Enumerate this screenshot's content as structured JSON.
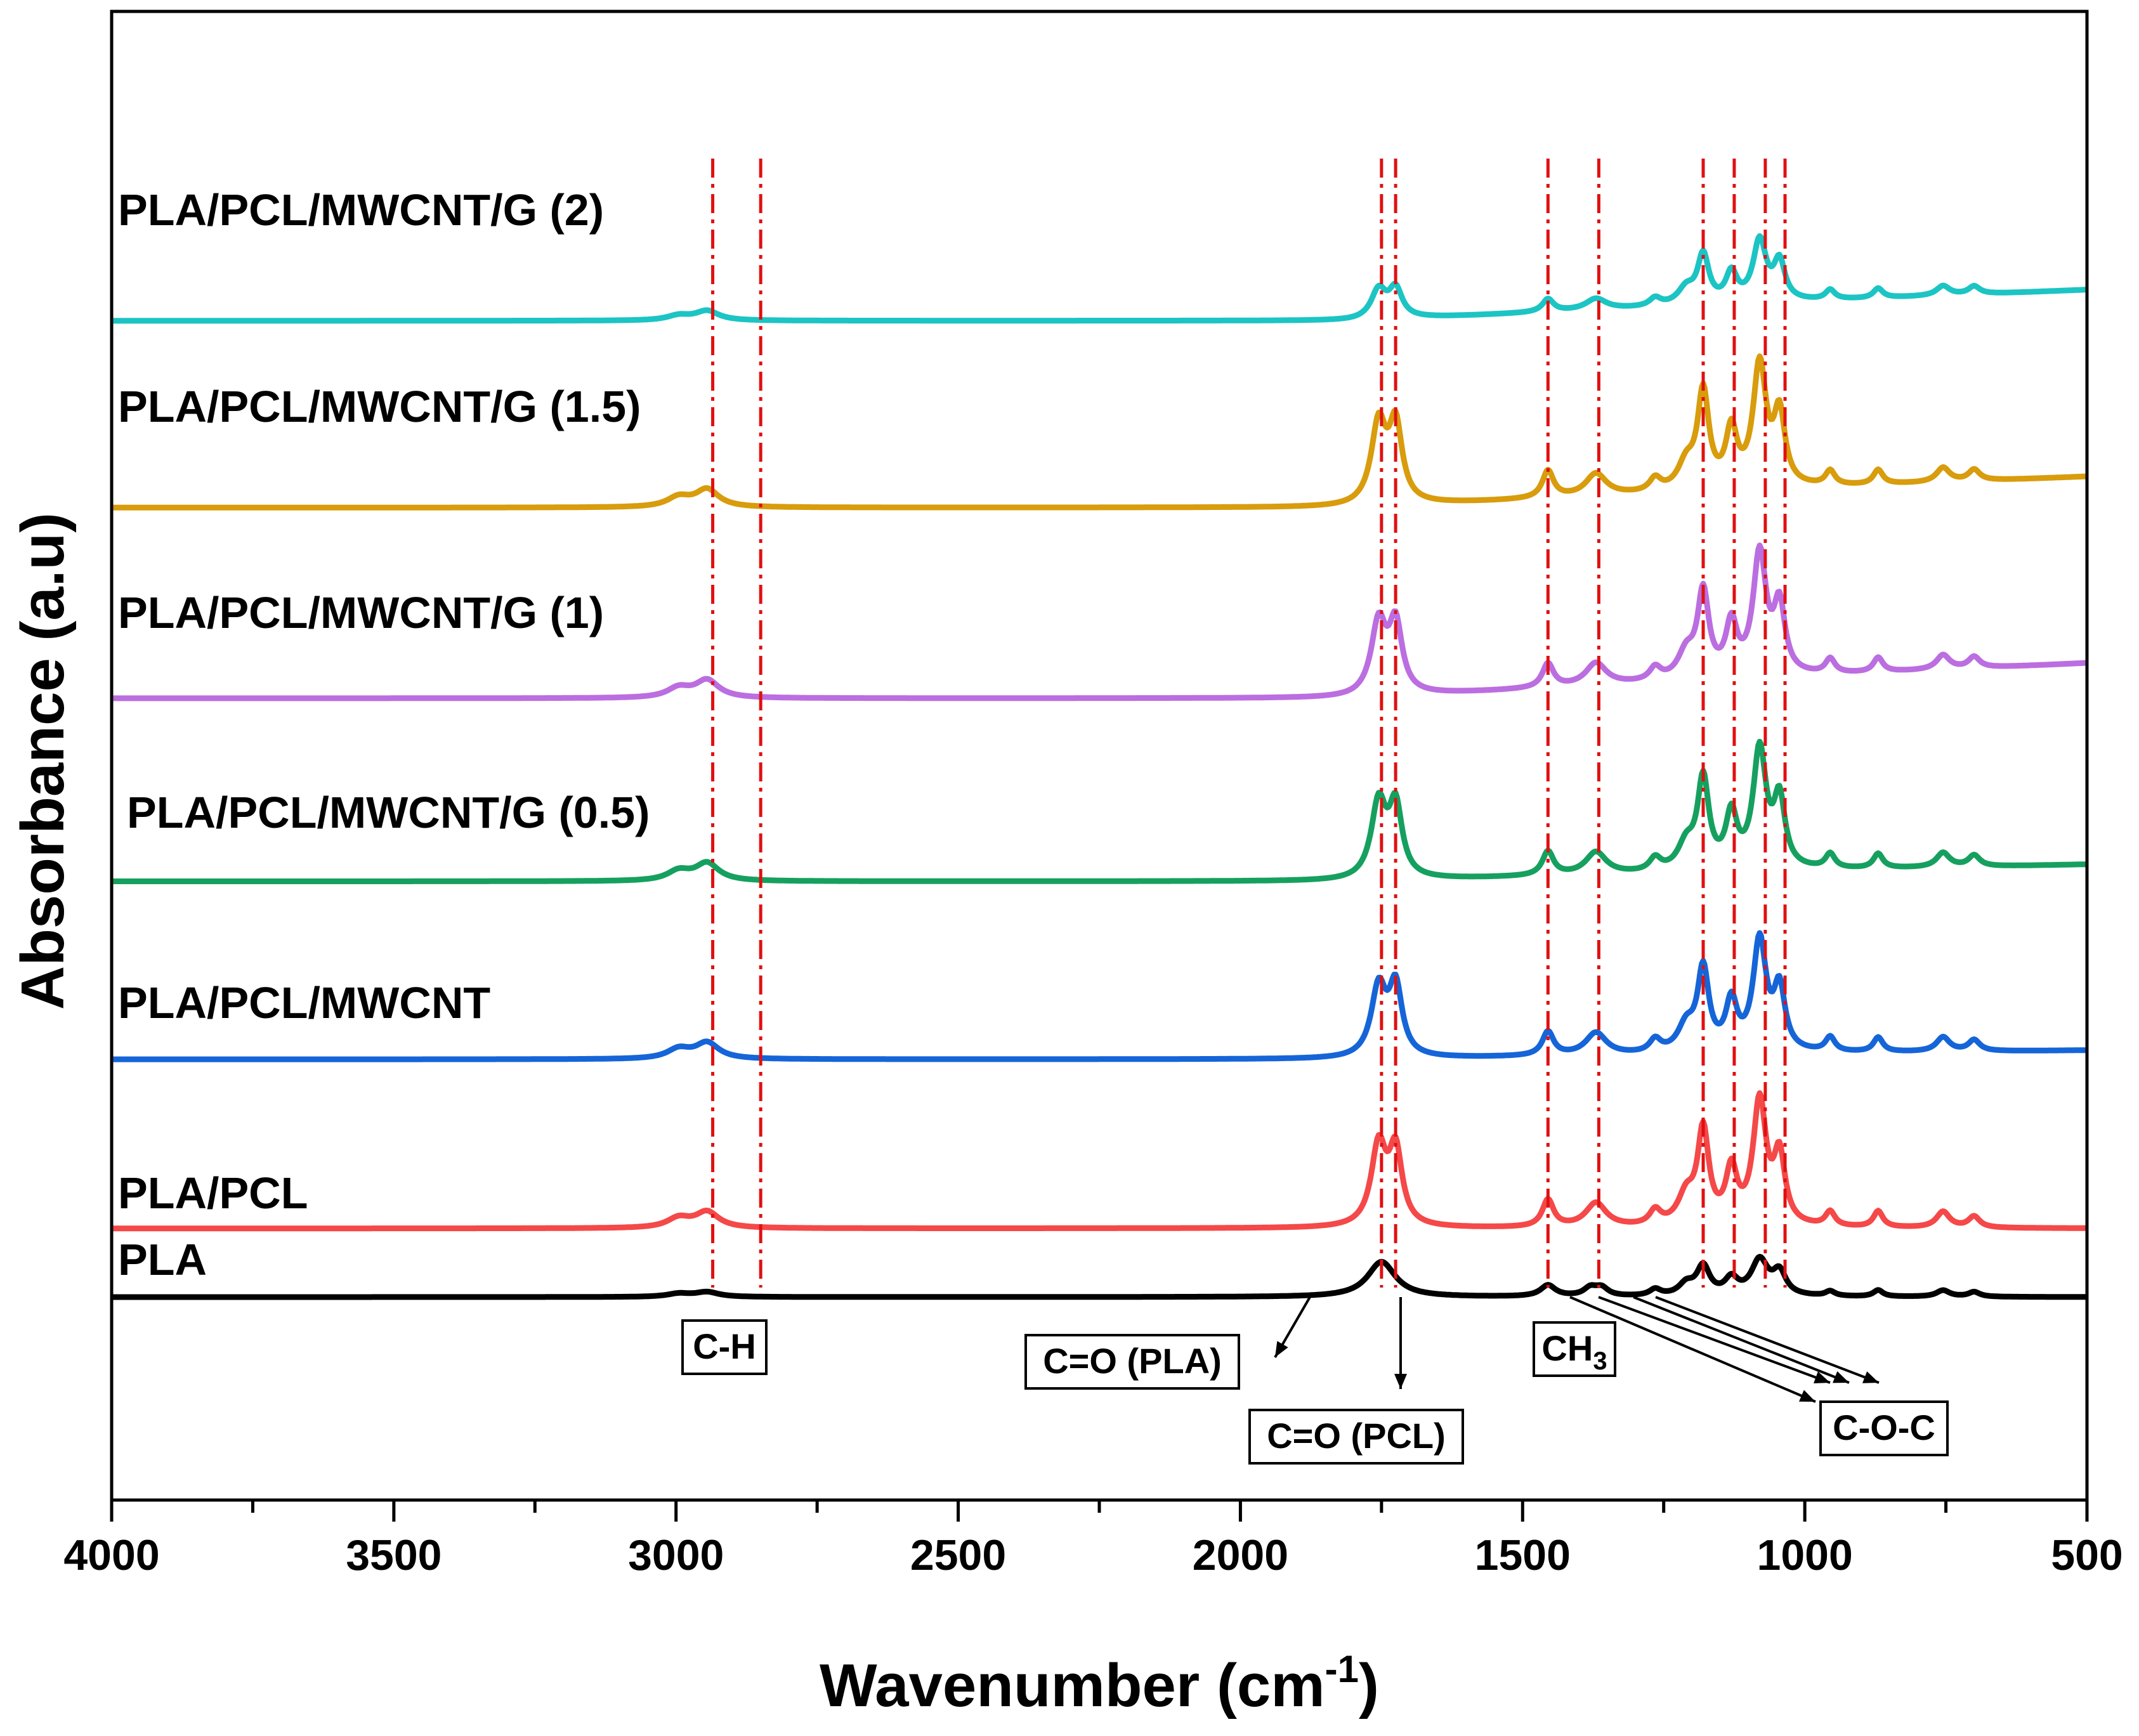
{
  "chart_data": {
    "type": "line",
    "xlabel": "Wavenumber (cm",
    "xlabel_sup": "-1",
    "xlabel_end": ")",
    "ylabel": "Absorbance (a.u)",
    "xlim": [
      4000,
      500
    ],
    "x_reversed": true,
    "x_ticks": [
      "4000",
      "3500",
      "3000",
      "2500",
      "2000",
      "1500",
      "1000",
      "500"
    ],
    "y_ticks_shown": false,
    "grid": false,
    "series_stacked": true,
    "series": [
      {
        "name": "PLA",
        "color": "#000000",
        "offset": 0,
        "scale": 1,
        "peaks": [
          [
            2995,
            2,
            25
          ],
          [
            2945,
            3,
            25
          ],
          [
            1750,
            22,
            30
          ],
          [
            1455,
            7,
            16
          ],
          [
            1380,
            5,
            14
          ],
          [
            1360,
            5,
            14
          ],
          [
            1265,
            4,
            12
          ],
          [
            1210,
            7,
            16
          ],
          [
            1180,
            18,
            14
          ],
          [
            1130,
            10,
            14
          ],
          [
            1080,
            22,
            18
          ],
          [
            1045,
            14,
            14
          ],
          [
            955,
            3,
            10
          ],
          [
            870,
            4,
            10
          ],
          [
            755,
            4,
            14
          ],
          [
            700,
            3,
            12
          ]
        ]
      },
      {
        "name": "PLA/PCL",
        "color": "#f54848",
        "offset": 54,
        "scale": 1,
        "peaks": [
          [
            2995,
            6,
            25
          ],
          [
            2945,
            10,
            25
          ],
          [
            1755,
            50,
            16
          ],
          [
            1725,
            46,
            14
          ],
          [
            1455,
            17,
            12
          ],
          [
            1370,
            15,
            22
          ],
          [
            1265,
            9,
            12
          ],
          [
            1210,
            18,
            18
          ],
          [
            1180,
            58,
            12
          ],
          [
            1130,
            33,
            12
          ],
          [
            1080,
            77,
            14
          ],
          [
            1045,
            42,
            12
          ],
          [
            955,
            9,
            10
          ],
          [
            870,
            10,
            10
          ],
          [
            755,
            10,
            14
          ],
          [
            700,
            7,
            12
          ]
        ],
        "baseline_slope": 0.0
      },
      {
        "name": "PLA/PCL/MWCNT",
        "color": "#1565d8",
        "offset": 187,
        "scale": 1,
        "peaks": [
          [
            2995,
            6,
            25
          ],
          [
            2945,
            10,
            25
          ],
          [
            1755,
            43,
            16
          ],
          [
            1725,
            43,
            14
          ],
          [
            1455,
            15,
            12
          ],
          [
            1370,
            14,
            22
          ],
          [
            1265,
            8,
            12
          ],
          [
            1210,
            16,
            18
          ],
          [
            1180,
            51,
            12
          ],
          [
            1130,
            30,
            12
          ],
          [
            1080,
            69,
            14
          ],
          [
            1045,
            38,
            12
          ],
          [
            955,
            9,
            10
          ],
          [
            870,
            9,
            10
          ],
          [
            755,
            9,
            14
          ],
          [
            700,
            7,
            12
          ]
        ],
        "baseline_slope": 0.0043
      },
      {
        "name": "PLA/PCL/MWCNT/G (0.5)",
        "color": "#16a05f",
        "offset": 327,
        "scale": 1,
        "peaks": [
          [
            2995,
            6,
            25
          ],
          [
            2945,
            11,
            25
          ],
          [
            1755,
            47,
            16
          ],
          [
            1725,
            44,
            14
          ],
          [
            1455,
            15,
            12
          ],
          [
            1370,
            14,
            22
          ],
          [
            1265,
            8,
            12
          ],
          [
            1210,
            16,
            18
          ],
          [
            1180,
            56,
            12
          ],
          [
            1130,
            33,
            12
          ],
          [
            1080,
            74,
            14
          ],
          [
            1045,
            42,
            12
          ],
          [
            955,
            9,
            10
          ],
          [
            870,
            9,
            10
          ],
          [
            755,
            9,
            14
          ],
          [
            700,
            7,
            12
          ]
        ],
        "baseline_slope": 0.0081
      },
      {
        "name": "PLA/PCL/MWCNT/G (1)",
        "color": "#bb6ee0",
        "offset": 471,
        "scale": 1,
        "peaks": [
          [
            2995,
            6,
            25
          ],
          [
            2945,
            11,
            25
          ],
          [
            1755,
            45,
            16
          ],
          [
            1725,
            43,
            14
          ],
          [
            1455,
            15,
            12
          ],
          [
            1370,
            14,
            22
          ],
          [
            1265,
            8,
            12
          ],
          [
            1210,
            16,
            18
          ],
          [
            1180,
            53,
            12
          ],
          [
            1130,
            32,
            12
          ],
          [
            1080,
            76,
            14
          ],
          [
            1045,
            42,
            12
          ],
          [
            955,
            9,
            10
          ],
          [
            870,
            9,
            10
          ],
          [
            755,
            9,
            14
          ],
          [
            700,
            7,
            12
          ]
        ],
        "baseline_slope": 0.0169
      },
      {
        "name": "PLA/PCL/MWCNT/G (1.5)",
        "color": "#d89c0c",
        "offset": 621,
        "scale": 1,
        "peaks": [
          [
            2995,
            6,
            25
          ],
          [
            2945,
            11,
            25
          ],
          [
            1755,
            50,
            16
          ],
          [
            1725,
            48,
            14
          ],
          [
            1455,
            17,
            12
          ],
          [
            1370,
            14,
            22
          ],
          [
            1265,
            8,
            12
          ],
          [
            1210,
            16,
            18
          ],
          [
            1180,
            60,
            12
          ],
          [
            1130,
            35,
            12
          ],
          [
            1080,
            76,
            14
          ],
          [
            1045,
            44,
            12
          ],
          [
            955,
            9,
            10
          ],
          [
            870,
            9,
            10
          ],
          [
            755,
            9,
            14
          ],
          [
            700,
            7,
            12
          ]
        ],
        "baseline_slope": 0.0149
      },
      {
        "name": "PLA/PCL/MWCNT/G (2)",
        "color": "#1cc4c4",
        "offset": 768,
        "scale": 1,
        "peaks": [
          [
            2995,
            3,
            25
          ],
          [
            2945,
            6,
            25
          ],
          [
            1755,
            18,
            16
          ],
          [
            1725,
            18,
            14
          ],
          [
            1455,
            8,
            12
          ],
          [
            1370,
            7,
            22
          ],
          [
            1265,
            5,
            12
          ],
          [
            1210,
            10,
            18
          ],
          [
            1180,
            30,
            12
          ],
          [
            1130,
            18,
            12
          ],
          [
            1080,
            38,
            14
          ],
          [
            1045,
            24,
            12
          ],
          [
            955,
            6,
            10
          ],
          [
            870,
            6,
            10
          ],
          [
            755,
            6,
            14
          ],
          [
            700,
            5,
            12
          ]
        ],
        "baseline_slope": 0.0149
      }
    ],
    "reference_lines": [
      2935,
      2850,
      1750,
      1725,
      1455,
      1365,
      1180,
      1125,
      1070,
      1035
    ],
    "reference_line_color": "#e01010",
    "annotations": [
      {
        "label": "C-H"
      },
      {
        "label": "C=O (PLA)"
      },
      {
        "label": "C=O (PCL)"
      },
      {
        "label": "CH",
        "sub": "3"
      },
      {
        "label": "C-O-C"
      }
    ]
  }
}
